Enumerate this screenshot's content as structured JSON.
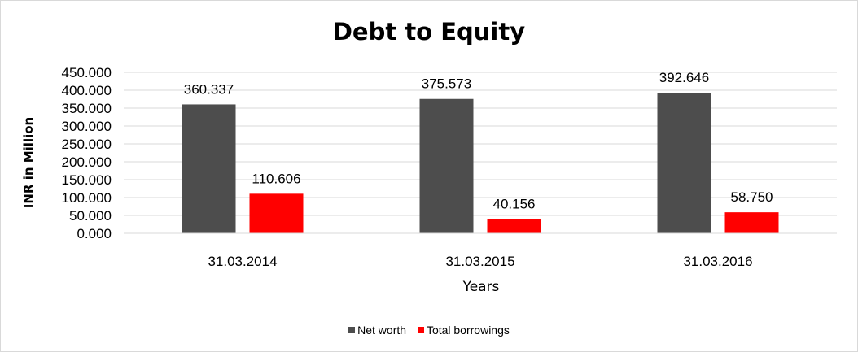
{
  "chart_data": {
    "type": "bar",
    "title": "Debt to Equity",
    "xlabel": "Years",
    "ylabel": "INR in Million",
    "categories": [
      "31.03.2014",
      "31.03.2015",
      "31.03.2016"
    ],
    "series": [
      {
        "name": "Net worth",
        "color": "#4d4d4d",
        "values": [
          360.337,
          375.573,
          392.646
        ],
        "labels": [
          "360.337",
          "375.573",
          "392.646"
        ]
      },
      {
        "name": "Total borrowings",
        "color": "#ff0000",
        "values": [
          110.606,
          40.156,
          58.75
        ],
        "labels": [
          "110.606",
          "40.156",
          "58.750"
        ]
      }
    ],
    "ylim": [
      0,
      450
    ],
    "yticks": [
      "0.000",
      "50.000",
      "100.000",
      "150.000",
      "200.000",
      "250.000",
      "300.000",
      "350.000",
      "400.000",
      "450.000"
    ],
    "grid": true,
    "legend_position": "bottom"
  }
}
